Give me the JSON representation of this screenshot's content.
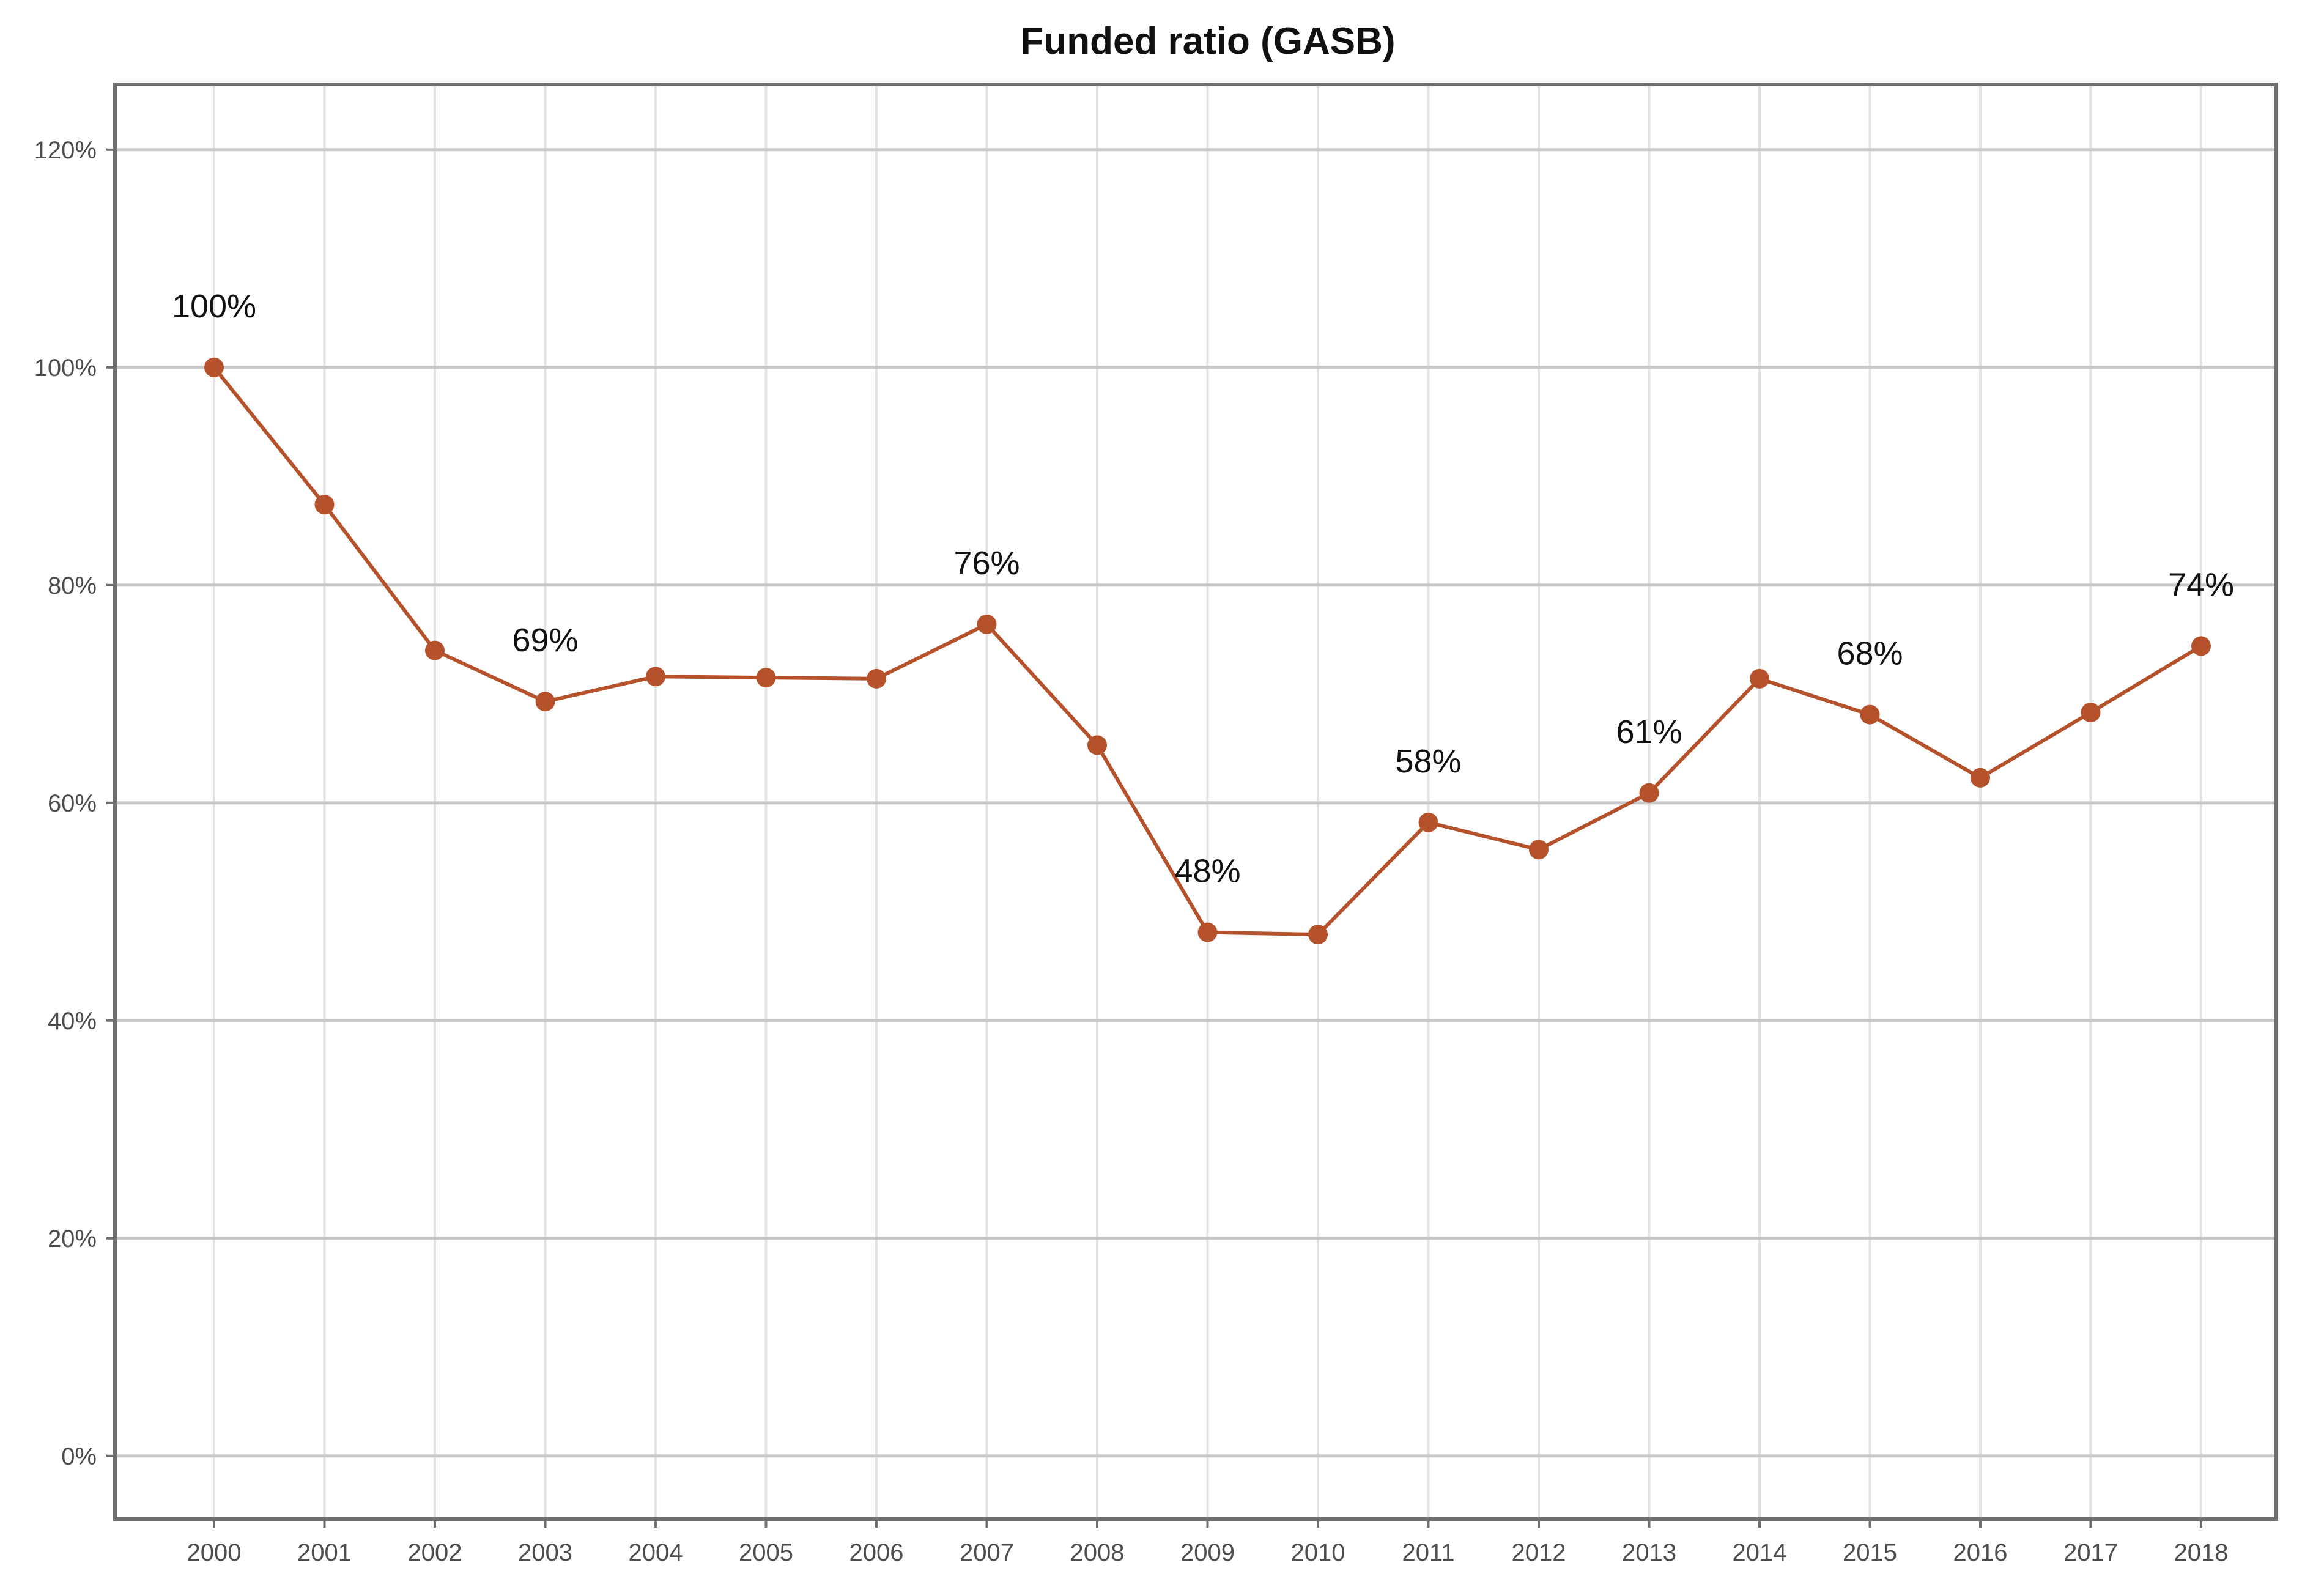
{
  "chart_data": {
    "type": "line",
    "title": "Funded ratio (GASB)",
    "xlabel": "",
    "ylabel": "",
    "x": [
      "2000",
      "2001",
      "2002",
      "2003",
      "2004",
      "2005",
      "2006",
      "2007",
      "2008",
      "2009",
      "2010",
      "2011",
      "2012",
      "2013",
      "2014",
      "2015",
      "2016",
      "2017",
      "2018"
    ],
    "series": [
      {
        "values": [
          1.0,
          0.874,
          0.74,
          0.693,
          0.716,
          0.715,
          0.714,
          0.764,
          0.653,
          0.481,
          0.479,
          0.582,
          0.557,
          0.609,
          0.714,
          0.681,
          0.623,
          0.683,
          0.744
        ],
        "color": "#b5512b"
      }
    ],
    "y_ticks": [
      0,
      0.2,
      0.4,
      0.6,
      0.8,
      1.0,
      1.2
    ],
    "y_tick_labels": [
      "0%",
      "20%",
      "40%",
      "60%",
      "80%",
      "100%",
      "120%"
    ],
    "ylim": [
      -0.058,
      1.26
    ],
    "data_labels": [
      {
        "year": "2000",
        "text": "100%"
      },
      {
        "year": "2003",
        "text": "69%"
      },
      {
        "year": "2007",
        "text": "76%"
      },
      {
        "year": "2009",
        "text": "48%"
      },
      {
        "year": "2011",
        "text": "58%"
      },
      {
        "year": "2013",
        "text": "61%"
      },
      {
        "year": "2015",
        "text": "68%"
      },
      {
        "year": "2018",
        "text": "74%"
      }
    ],
    "grid": true,
    "legend": "none"
  }
}
